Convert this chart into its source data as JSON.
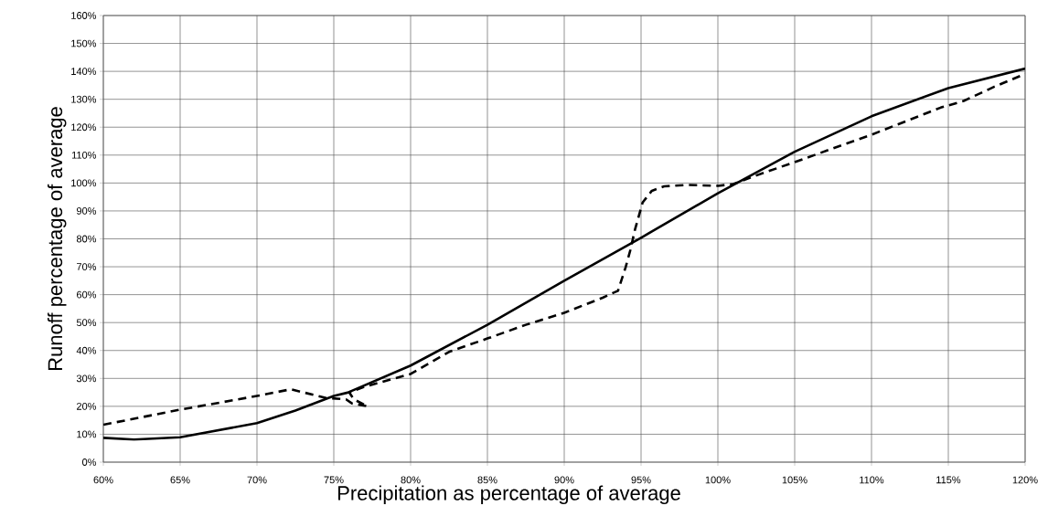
{
  "chart_data": {
    "type": "line",
    "xlabel": "Precipitation as percentage of average",
    "ylabel": "Runoff percentage of average",
    "xlim": [
      60,
      120
    ],
    "ylim": [
      0,
      160
    ],
    "xticks": [
      {
        "value": 60,
        "label": "60%"
      },
      {
        "value": 65,
        "label": "65%"
      },
      {
        "value": 70,
        "label": "70%"
      },
      {
        "value": 75,
        "label": "75%"
      },
      {
        "value": 80,
        "label": "80%"
      },
      {
        "value": 85,
        "label": "85%"
      },
      {
        "value": 90,
        "label": "90%"
      },
      {
        "value": 95,
        "label": "95%"
      },
      {
        "value": 100,
        "label": "100%"
      },
      {
        "value": 105,
        "label": "105%"
      },
      {
        "value": 110,
        "label": "110%"
      },
      {
        "value": 115,
        "label": "115%"
      },
      {
        "value": 120,
        "label": "120%"
      }
    ],
    "yticks": [
      {
        "value": 0,
        "label": "0%"
      },
      {
        "value": 10,
        "label": "10%"
      },
      {
        "value": 20,
        "label": "20%"
      },
      {
        "value": 30,
        "label": "30%"
      },
      {
        "value": 40,
        "label": "40%"
      },
      {
        "value": 50,
        "label": "50%"
      },
      {
        "value": 60,
        "label": "60%"
      },
      {
        "value": 70,
        "label": "70%"
      },
      {
        "value": 80,
        "label": "80%"
      },
      {
        "value": 90,
        "label": "90%"
      },
      {
        "value": 100,
        "label": "100%"
      },
      {
        "value": 110,
        "label": "110%"
      },
      {
        "value": 120,
        "label": "120%"
      },
      {
        "value": 130,
        "label": "130%"
      },
      {
        "value": 140,
        "label": "140%"
      },
      {
        "value": 150,
        "label": "150%"
      },
      {
        "value": 160,
        "label": "160%"
      }
    ],
    "grid": true,
    "marker": "none",
    "series": [
      {
        "color": "#000000",
        "line_style": "dashed",
        "x": [
          60,
          65,
          70,
          72.2,
          74.5,
          75.8,
          76.2,
          77.2,
          76.3,
          76,
          77,
          80,
          82.5,
          85,
          87.5,
          90,
          92.5,
          93.5,
          94,
          94.3,
          94.6,
          95.1,
          95.7,
          96.5,
          98,
          100,
          101,
          102.5,
          105,
          107.5,
          110,
          112.5,
          114.5,
          116,
          118,
          120
        ],
        "values": [
          13.4,
          18.8,
          23.7,
          26.1,
          23,
          22.5,
          21,
          20,
          22.5,
          25,
          27,
          31.6,
          39.5,
          44.3,
          49.2,
          53.5,
          58.9,
          61.4,
          69.9,
          75.9,
          83.2,
          93,
          97.2,
          98.8,
          99.3,
          99,
          99.6,
          102.7,
          107.5,
          112.4,
          117.3,
          122.7,
          127,
          129.4,
          134.5,
          139.1
        ]
      },
      {
        "color": "#000000",
        "line_style": "solid",
        "x": [
          60,
          62,
          65,
          70,
          72.5,
          75,
          75.9,
          80,
          85,
          90,
          95,
          100,
          105,
          110,
          115,
          120
        ],
        "values": [
          8.7,
          8.1,
          8.9,
          14,
          18.5,
          23.7,
          24.9,
          34.6,
          49.2,
          65,
          80.4,
          96.3,
          111.2,
          123.9,
          134,
          141
        ]
      }
    ]
  }
}
